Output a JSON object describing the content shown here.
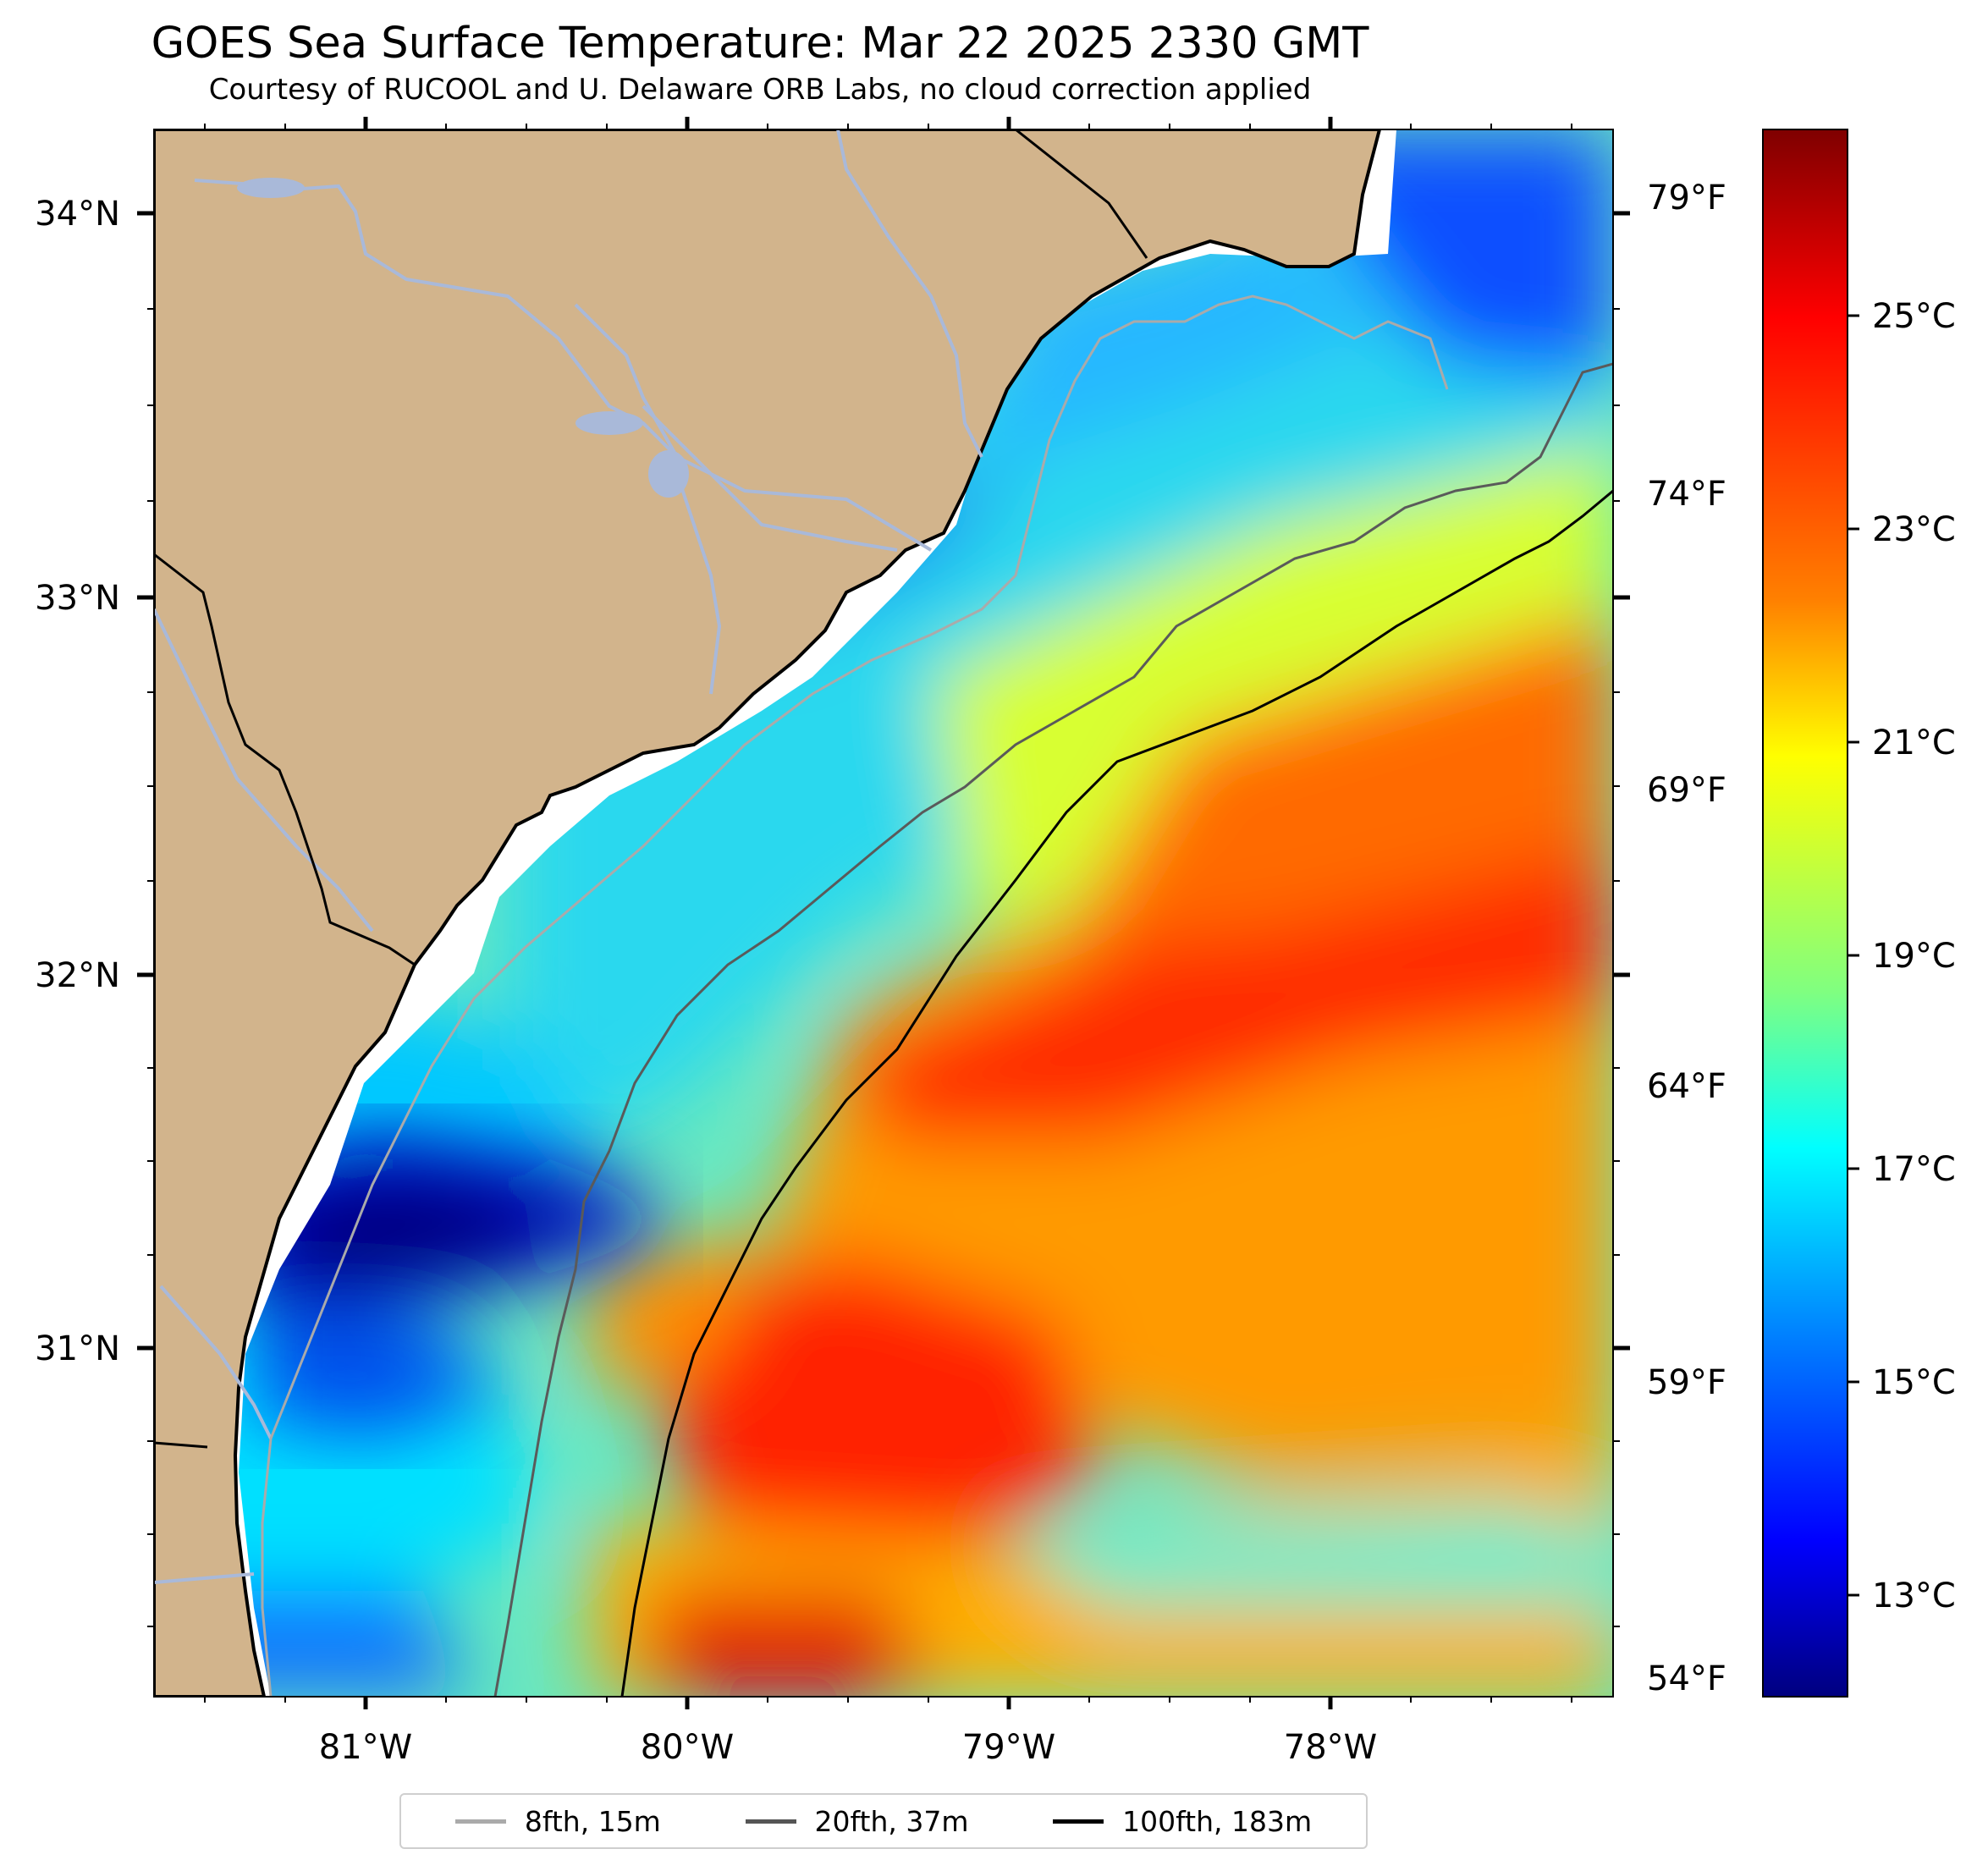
{
  "title": "GOES Sea Surface Temperature: Mar 22 2025 2330 GMT",
  "subtitle": "Courtesy of RUCOOL and U. Delaware ORB Labs, no cloud correction applied",
  "map": {
    "lat_ticks": [
      "34°N",
      "33°N",
      "32°N",
      "31°N"
    ],
    "lon_ticks": [
      "81°W",
      "80°W",
      "79°W",
      "78°W"
    ],
    "land_color": "#d2b48c",
    "river_color": "#a9b9d9"
  },
  "colorbar": {
    "celsius_labels": [
      "25°C",
      "23°C",
      "21°C",
      "19°C",
      "17°C",
      "15°C",
      "13°C"
    ],
    "fahrenheit_labels": [
      "79°F",
      "74°F",
      "69°F",
      "64°F",
      "59°F",
      "54°F"
    ],
    "colormap": [
      "#7f0000",
      "#ff0000",
      "#ff8000",
      "#ffff00",
      "#80ff80",
      "#00ffff",
      "#0080ff",
      "#0000ff",
      "#00007f"
    ]
  },
  "legend": {
    "items": [
      {
        "label": "8fth, 15m",
        "color": "#aaaaaa"
      },
      {
        "label": "20fth, 37m",
        "color": "#555555"
      },
      {
        "label": "100fth, 183m",
        "color": "#000000"
      }
    ]
  }
}
